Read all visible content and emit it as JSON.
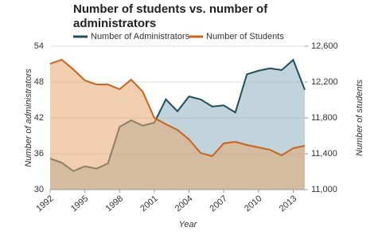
{
  "chart_data": {
    "type": "area",
    "title": "Number of students vs. number of administrators",
    "xlabel": "Year",
    "ylabel": "Number of administrators",
    "y2label": "Number of students",
    "x": [
      1992,
      1993,
      1994,
      1995,
      1996,
      1997,
      1998,
      1999,
      2000,
      2001,
      2002,
      2003,
      2004,
      2005,
      2006,
      2007,
      2008,
      2009,
      2010,
      2011,
      2012,
      2013,
      2014
    ],
    "xlim": [
      1992,
      2014
    ],
    "xticks": [
      1992,
      1995,
      1998,
      2001,
      2004,
      2007,
      2010,
      2013
    ],
    "ylim": [
      30,
      54
    ],
    "yticks": [
      30,
      36,
      42,
      48,
      54
    ],
    "y2lim": [
      11000,
      12600
    ],
    "y2ticks": [
      {
        "value": 11000,
        "label": "11,000"
      },
      {
        "value": 11400,
        "label": "11,400"
      },
      {
        "value": 11800,
        "label": "11,800"
      },
      {
        "value": 12200,
        "label": "12,200"
      },
      {
        "value": 12600,
        "label": "12,600"
      }
    ],
    "grid": true,
    "series": [
      {
        "name": "Number of Administrators",
        "color": "#1f4e5f",
        "fill": "#8fb0bd",
        "values": [
          35.2,
          34.5,
          33.1,
          33.9,
          33.5,
          34.4,
          40.5,
          41.6,
          40.7,
          41.2,
          45.1,
          43.1,
          45.6,
          45.1,
          43.9,
          44.1,
          42.9,
          49.3,
          49.9,
          50.3,
          50.0,
          51.7,
          46.7
        ]
      },
      {
        "name": "Number of Students",
        "color": "#c8641e",
        "fill": "#e6a56e",
        "axis": "y2",
        "values": [
          12404,
          12449,
          12342,
          12218,
          12173,
          12173,
          12120,
          12227,
          12093,
          11800,
          11729,
          11667,
          11560,
          11409,
          11373,
          11516,
          11533,
          11498,
          11471,
          11444,
          11382,
          11462,
          11489
        ]
      }
    ]
  }
}
